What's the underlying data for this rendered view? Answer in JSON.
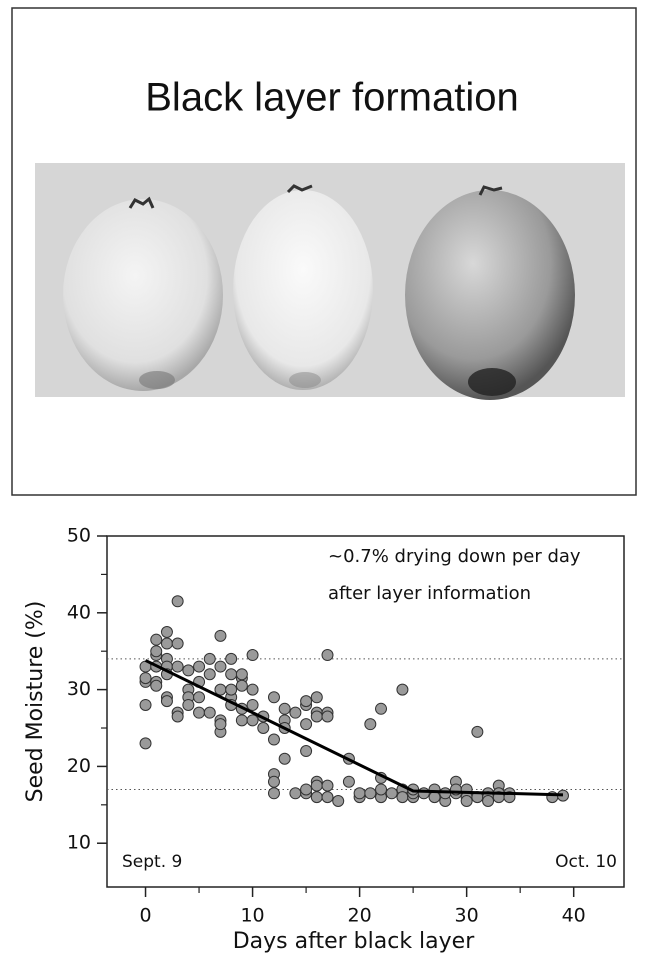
{
  "slide_title": "Black layer formation",
  "chart_data": {
    "type": "scatter",
    "xlabel": "Days after black layer",
    "ylabel": "Seed Moisture (%)",
    "annotations": [
      "~0.7% drying down per day",
      "after layer information"
    ],
    "start_label": "Sept. 9",
    "end_label": "Oct. 10",
    "xlim": [
      -3.6,
      44.7
    ],
    "ylim": [
      4.3,
      50
    ],
    "xticks": [
      0,
      10,
      20,
      30,
      40
    ],
    "yticks": [
      10,
      20,
      30,
      40,
      50
    ],
    "x_minor_ticks": [
      5,
      15,
      25,
      35
    ],
    "y_minor_ticks": [
      15,
      25,
      35,
      45
    ],
    "reference_lines": [
      34,
      17
    ],
    "color": "#9a9a9a",
    "x": [
      0,
      0,
      0,
      0,
      0,
      1,
      1,
      1,
      1,
      1,
      1,
      2,
      2,
      2,
      2,
      2,
      2,
      2,
      3,
      3,
      3,
      3,
      3,
      4,
      4,
      4,
      4,
      5,
      5,
      5,
      5,
      6,
      6,
      6,
      7,
      7,
      7,
      7,
      7,
      7,
      8,
      8,
      8,
      8,
      8,
      9,
      9,
      9,
      9,
      9,
      10,
      10,
      10,
      10,
      11,
      11,
      12,
      12,
      12,
      12,
      12,
      13,
      13,
      13,
      13,
      14,
      14,
      15,
      15,
      15,
      15,
      15,
      15,
      16,
      16,
      16,
      16,
      16,
      16,
      17,
      17,
      17,
      17,
      17,
      18,
      19,
      19,
      20,
      20,
      21,
      21,
      22,
      22,
      22,
      22,
      23,
      24,
      24,
      24,
      25,
      25,
      25,
      26,
      27,
      27,
      28,
      28,
      29,
      29,
      29,
      30,
      30,
      30,
      31,
      31,
      32,
      32,
      32,
      33,
      33,
      33,
      34,
      34,
      38,
      39
    ],
    "values": [
      31,
      28,
      23,
      31.5,
      33,
      33,
      34.5,
      36.5,
      35,
      31,
      30.5,
      37.5,
      36,
      34,
      33,
      29,
      28.5,
      32,
      41.5,
      36,
      33,
      27,
      26.5,
      30,
      29,
      28,
      32.5,
      33,
      31,
      29,
      27,
      34,
      32,
      27,
      37,
      33,
      30,
      26,
      24.5,
      25.5,
      34,
      32,
      29,
      28,
      30,
      31.5,
      30.5,
      27.5,
      26,
      32,
      34.5,
      30,
      28,
      26,
      25,
      26.5,
      29,
      23.5,
      19,
      18,
      16.5,
      27.5,
      26,
      25,
      21,
      27,
      16.5,
      28,
      28.5,
      25.5,
      22,
      16.5,
      17,
      29,
      27,
      26.5,
      16,
      18,
      17.5,
      34.5,
      27,
      26.5,
      17.5,
      16,
      15.5,
      21,
      18,
      16,
      16.5,
      25.5,
      16.5,
      27.5,
      18.5,
      16,
      17,
      16.5,
      30,
      17,
      16,
      16,
      16.5,
      17,
      16.5,
      17,
      16,
      15.5,
      16.5,
      18,
      16.5,
      17,
      17,
      16,
      15.5,
      24.5,
      16,
      16.5,
      16,
      15.5,
      17.5,
      16.5,
      16,
      16.5,
      16,
      16,
      16.2
    ],
    "trend": {
      "x": [
        0,
        25,
        39
      ],
      "values": [
        33.8,
        16.8,
        16.3
      ]
    }
  }
}
